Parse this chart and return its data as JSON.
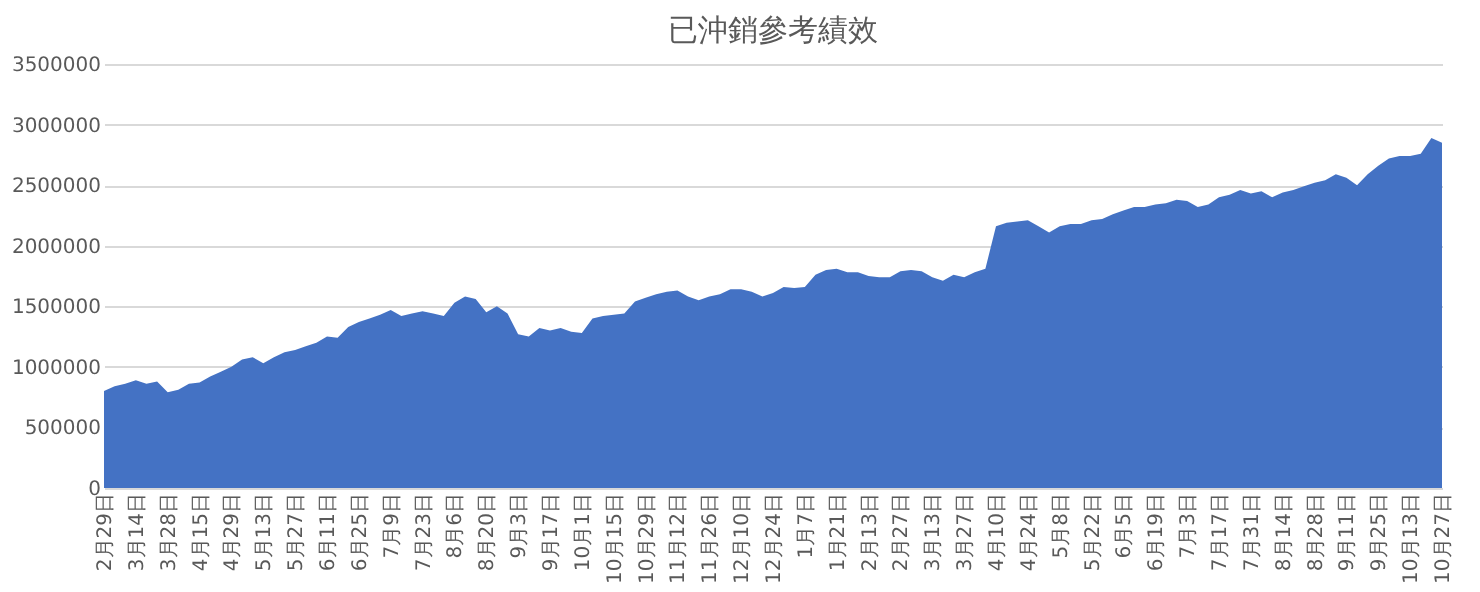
{
  "chart_data": {
    "type": "area",
    "title": "已沖銷參考績效",
    "categories": [
      "2月29日",
      null,
      null,
      "3月14日",
      null,
      null,
      "3月28日",
      null,
      null,
      "4月15日",
      null,
      null,
      "4月29日",
      null,
      null,
      "5月13日",
      null,
      null,
      "5月27日",
      null,
      null,
      "6月11日",
      null,
      null,
      "6月25日",
      null,
      null,
      "7月9日",
      null,
      null,
      "7月23日",
      null,
      null,
      "8月6日",
      null,
      null,
      "8月20日",
      null,
      null,
      "9月3日",
      null,
      null,
      "9月17日",
      null,
      null,
      "10月1日",
      null,
      null,
      "10月15日",
      null,
      null,
      "10月29日",
      null,
      null,
      "11月12日",
      null,
      null,
      "11月26日",
      null,
      null,
      "12月10日",
      null,
      null,
      "12月24日",
      null,
      null,
      "1月7日",
      null,
      null,
      "1月21日",
      null,
      null,
      "2月13日",
      null,
      null,
      "2月27日",
      null,
      null,
      "3月13日",
      null,
      null,
      "3月27日",
      null,
      null,
      "4月10日",
      null,
      null,
      "4月24日",
      null,
      null,
      "5月8日",
      null,
      null,
      "5月22日",
      null,
      null,
      "6月5日",
      null,
      null,
      "6月19日",
      null,
      null,
      "7月3日",
      null,
      null,
      "7月17日",
      null,
      null,
      "7月31日",
      null,
      null,
      "8月14日",
      null,
      null,
      "8月28日",
      null,
      null,
      "9月11日",
      null,
      null,
      "9月25日",
      null,
      null,
      "10月13日",
      null,
      null,
      "10月27日"
    ],
    "values": [
      800000,
      840000,
      860000,
      890000,
      860000,
      880000,
      790000,
      810000,
      860000,
      870000,
      920000,
      960000,
      1000000,
      1060000,
      1080000,
      1030000,
      1080000,
      1120000,
      1140000,
      1170000,
      1200000,
      1250000,
      1240000,
      1330000,
      1370000,
      1400000,
      1430000,
      1470000,
      1420000,
      1440000,
      1460000,
      1440000,
      1420000,
      1530000,
      1580000,
      1560000,
      1450000,
      1500000,
      1440000,
      1270000,
      1250000,
      1320000,
      1300000,
      1320000,
      1290000,
      1280000,
      1400000,
      1420000,
      1430000,
      1440000,
      1540000,
      1570000,
      1600000,
      1620000,
      1630000,
      1580000,
      1550000,
      1580000,
      1600000,
      1640000,
      1640000,
      1620000,
      1580000,
      1610000,
      1660000,
      1650000,
      1660000,
      1760000,
      1800000,
      1810000,
      1780000,
      1780000,
      1750000,
      1740000,
      1740000,
      1790000,
      1800000,
      1790000,
      1740000,
      1710000,
      1760000,
      1740000,
      1780000,
      1810000,
      2160000,
      2190000,
      2200000,
      2210000,
      2160000,
      2110000,
      2160000,
      2180000,
      2180000,
      2210000,
      2220000,
      2260000,
      2290000,
      2320000,
      2320000,
      2340000,
      2350000,
      2380000,
      2370000,
      2320000,
      2340000,
      2400000,
      2420000,
      2460000,
      2430000,
      2450000,
      2400000,
      2440000,
      2460000,
      2490000,
      2520000,
      2540000,
      2590000,
      2560000,
      2500000,
      2590000,
      2660000,
      2720000,
      2740000,
      2740000,
      2760000,
      2890000,
      2850000
    ],
    "color": "#4472c4",
    "ylim": [
      0,
      3500000
    ],
    "yticks": [
      0,
      500000,
      1000000,
      1500000,
      2000000,
      2500000,
      3000000,
      3500000
    ],
    "grid": "y"
  }
}
